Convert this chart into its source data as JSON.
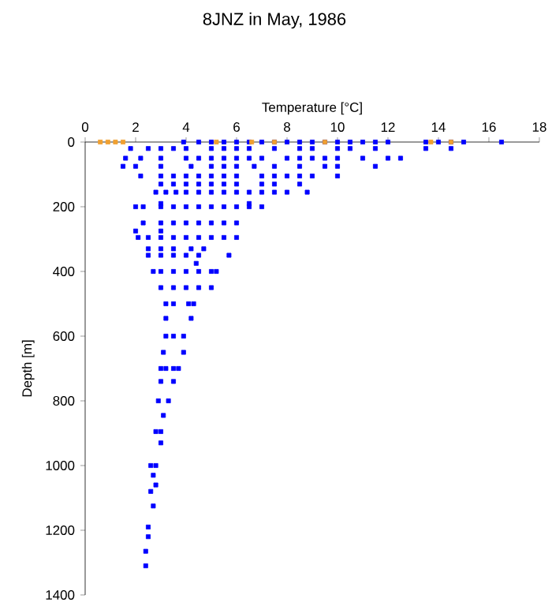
{
  "chart_data": {
    "type": "scatter",
    "title": "8JNZ in May, 1986",
    "xlabel": "Temperature [°C]",
    "ylabel": "Depth [m]",
    "xlim": [
      0,
      18
    ],
    "xticks": [
      0,
      2,
      4,
      6,
      8,
      10,
      12,
      14,
      16,
      18
    ],
    "ylim": [
      1400,
      0
    ],
    "yticks": [
      0,
      200,
      400,
      600,
      800,
      1000,
      1200,
      1400
    ],
    "marker": "square",
    "series": [
      {
        "color": "#0000ff",
        "x": [
          3.9,
          4.5,
          5,
          5.5,
          6,
          6.5,
          7,
          7.5,
          8,
          8.5,
          9,
          9.5,
          10,
          10.5,
          11,
          11.5,
          12,
          13.5,
          14,
          14.5,
          15,
          16.5,
          1.8,
          2.5,
          3,
          3.5,
          4,
          5,
          5.5,
          6,
          6.5,
          7.5,
          8.5,
          9,
          10,
          10.5,
          11.5,
          13.5,
          14.5,
          1.6,
          2.2,
          3,
          4,
          4.5,
          5,
          5.5,
          6,
          6.5,
          7,
          8,
          8.5,
          9,
          9.5,
          10,
          11,
          12,
          12.5,
          1.5,
          2,
          3,
          4.2,
          5,
          5.5,
          6,
          6.7,
          7.5,
          8.5,
          9.5,
          10,
          11.5,
          2.2,
          3,
          3.5,
          4,
          4.5,
          5,
          5.5,
          6,
          7,
          7.5,
          8,
          8.5,
          9,
          10,
          3,
          3.5,
          4,
          4.5,
          5,
          5.5,
          6,
          7,
          7.5,
          8.5,
          2.8,
          3.2,
          3.6,
          4,
          4.5,
          5,
          5.5,
          6,
          6.5,
          7,
          7.5,
          8,
          8.8,
          3,
          6.5,
          2,
          2.3,
          3,
          3.5,
          4,
          4.5,
          5,
          5.5,
          6,
          6.5,
          7,
          2.3,
          3,
          3.5,
          4,
          4.5,
          5,
          5.5,
          6,
          2,
          3,
          2.1,
          2.5,
          3,
          3.5,
          4,
          4.5,
          5,
          5.5,
          6,
          2.5,
          3,
          3.5,
          4.2,
          4.7,
          2.5,
          3,
          3.5,
          4,
          4.5,
          5.7,
          4.4,
          2.7,
          3,
          3.5,
          4,
          4.5,
          5,
          5.2,
          3,
          3.5,
          4,
          4.5,
          5,
          3.2,
          3.5,
          4.1,
          4.3,
          3.2,
          4.2,
          3.2,
          3.5,
          3.9,
          3.1,
          3.9,
          3,
          3.2,
          3.5,
          3.7,
          3,
          3.5,
          2.9,
          3.3,
          3.1,
          2.8,
          3,
          3,
          2.6,
          2.8,
          2.7,
          2.8,
          2.6,
          2.7,
          2.5,
          2.5,
          2.4,
          2.4
        ],
        "values": [
          0,
          0,
          0,
          0,
          0,
          0,
          0,
          0,
          0,
          0,
          0,
          0,
          0,
          0,
          0,
          0,
          0,
          0,
          0,
          0,
          0,
          0,
          20,
          20,
          20,
          20,
          20,
          20,
          20,
          20,
          20,
          20,
          20,
          20,
          20,
          20,
          20,
          20,
          20,
          50,
          50,
          50,
          50,
          50,
          50,
          50,
          50,
          50,
          50,
          50,
          50,
          50,
          50,
          50,
          50,
          50,
          50,
          75,
          75,
          75,
          75,
          75,
          75,
          75,
          75,
          75,
          75,
          75,
          75,
          75,
          105,
          105,
          105,
          105,
          105,
          105,
          105,
          105,
          105,
          105,
          105,
          105,
          105,
          105,
          130,
          130,
          130,
          130,
          130,
          130,
          130,
          130,
          130,
          130,
          155,
          155,
          155,
          155,
          155,
          155,
          155,
          155,
          155,
          155,
          155,
          155,
          155,
          190,
          190,
          200,
          200,
          200,
          200,
          200,
          200,
          200,
          200,
          200,
          200,
          200,
          250,
          250,
          250,
          250,
          250,
          250,
          250,
          250,
          275,
          275,
          295,
          295,
          295,
          295,
          295,
          295,
          295,
          295,
          295,
          330,
          330,
          330,
          330,
          330,
          350,
          350,
          350,
          350,
          350,
          350,
          375,
          400,
          400,
          400,
          400,
          400,
          400,
          400,
          450,
          450,
          450,
          450,
          450,
          500,
          500,
          500,
          500,
          545,
          545,
          600,
          600,
          600,
          650,
          650,
          700,
          700,
          700,
          700,
          740,
          740,
          800,
          800,
          845,
          895,
          895,
          930,
          1000,
          1000,
          1030,
          1060,
          1080,
          1125,
          1190,
          1220,
          1265,
          1310
        ]
      },
      {
        "color": "#f0a030",
        "x": [
          0.6,
          0.9,
          1.2,
          1.5,
          5.2,
          6.6,
          7.5,
          9.5,
          13.7,
          14.5
        ],
        "values": [
          0,
          0,
          0,
          0,
          0,
          0,
          0,
          0,
          0,
          0
        ]
      }
    ]
  }
}
